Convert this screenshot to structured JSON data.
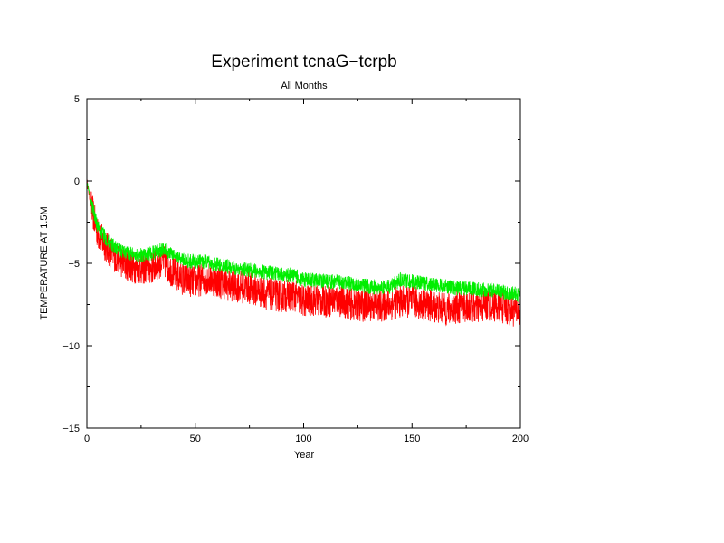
{
  "chart_data": {
    "type": "line",
    "title": "Experiment tcnaG−tcrpb",
    "subtitle": "All Months",
    "xlabel": "Year",
    "ylabel": "TEMPERATURE AT 1.5M",
    "xlim": [
      0,
      200
    ],
    "ylim": [
      -15,
      5
    ],
    "x_ticks": [
      0,
      50,
      100,
      150,
      200
    ],
    "y_ticks": [
      5,
      0,
      -5,
      -10,
      -15
    ],
    "grid": false,
    "legend": "none",
    "series": [
      {
        "color": "#ff0000",
        "x": [
          0,
          2,
          5,
          10,
          15,
          20,
          25,
          30,
          35,
          40,
          45,
          50,
          55,
          60,
          65,
          70,
          75,
          80,
          85,
          90,
          95,
          100,
          105,
          110,
          115,
          120,
          125,
          130,
          135,
          140,
          145,
          150,
          155,
          160,
          165,
          170,
          175,
          180,
          185,
          190,
          195,
          200
        ],
        "y": [
          0.0,
          -1.5,
          -3.2,
          -4.2,
          -4.8,
          -5.2,
          -5.3,
          -5.3,
          -4.8,
          -5.6,
          -6.0,
          -6.1,
          -5.9,
          -6.1,
          -6.3,
          -6.4,
          -6.5,
          -6.7,
          -6.9,
          -7.0,
          -6.9,
          -7.3,
          -7.2,
          -7.3,
          -7.2,
          -7.4,
          -7.6,
          -7.5,
          -7.6,
          -7.5,
          -7.3,
          -7.3,
          -7.5,
          -7.6,
          -7.8,
          -7.7,
          -7.6,
          -7.7,
          -7.5,
          -7.6,
          -7.8,
          -7.9
        ],
        "noise": 1.0
      },
      {
        "color": "#00ee00",
        "x": [
          0,
          2,
          5,
          10,
          15,
          20,
          25,
          30,
          35,
          40,
          45,
          50,
          55,
          60,
          65,
          70,
          75,
          80,
          85,
          90,
          95,
          100,
          105,
          110,
          115,
          120,
          125,
          130,
          135,
          140,
          145,
          150,
          155,
          160,
          165,
          170,
          175,
          180,
          185,
          190,
          195,
          200
        ],
        "y": [
          0.0,
          -1.3,
          -2.8,
          -3.7,
          -4.2,
          -4.4,
          -4.5,
          -4.4,
          -4.1,
          -4.5,
          -4.8,
          -4.9,
          -4.9,
          -5.1,
          -5.2,
          -5.3,
          -5.4,
          -5.5,
          -5.6,
          -5.7,
          -5.7,
          -6.0,
          -6.0,
          -6.1,
          -6.1,
          -6.2,
          -6.3,
          -6.4,
          -6.5,
          -6.4,
          -6.0,
          -6.1,
          -6.2,
          -6.3,
          -6.4,
          -6.5,
          -6.5,
          -6.6,
          -6.6,
          -6.7,
          -6.8,
          -6.9
        ],
        "noise": 0.45
      }
    ]
  }
}
